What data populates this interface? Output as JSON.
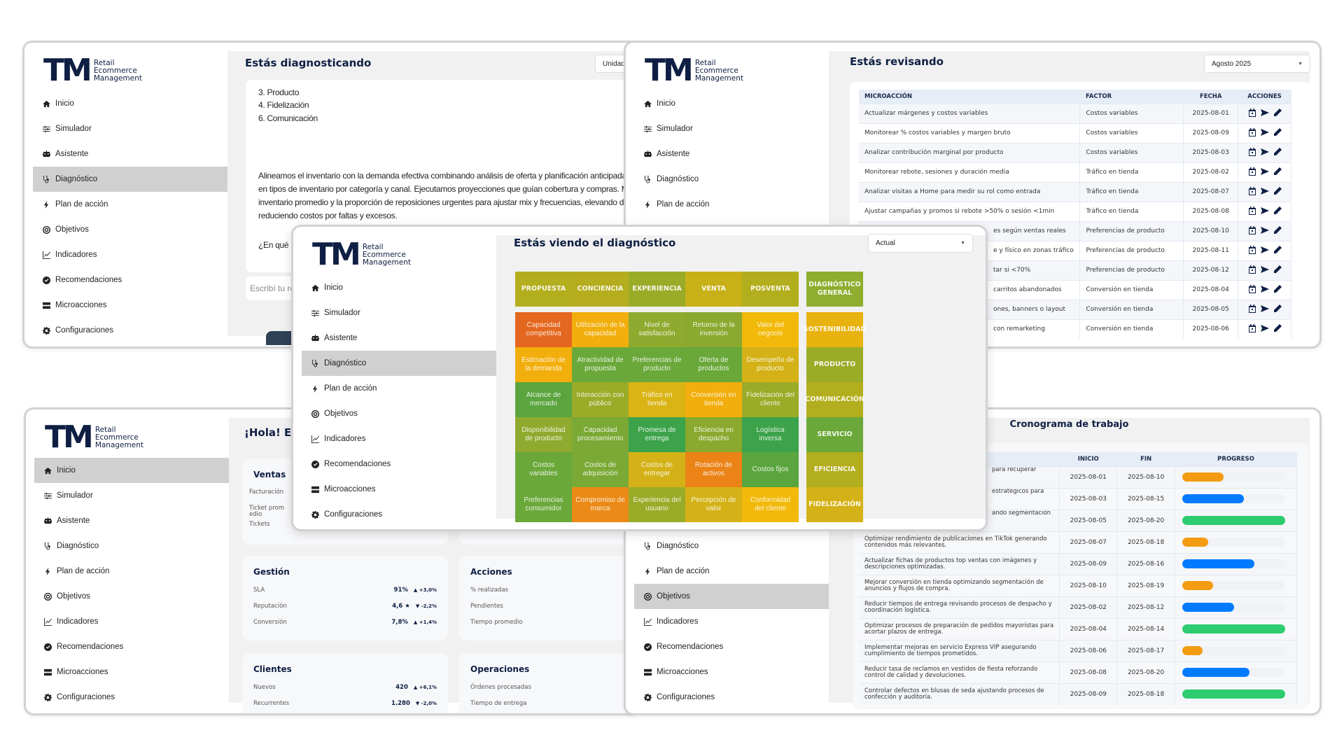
{
  "brand": {
    "letters": "TM",
    "line1": "Retail",
    "line2": "Ecommerce",
    "line3": "Management"
  },
  "sidebar": {
    "items": [
      {
        "label": "Inicio",
        "icon": "home"
      },
      {
        "label": "Simulador",
        "icon": "sliders"
      },
      {
        "label": "Asistente",
        "icon": "robot"
      },
      {
        "label": "Diagnóstico",
        "icon": "stethoscope"
      },
      {
        "label": "Plan de acción",
        "icon": "bolt"
      },
      {
        "label": "Objetivos",
        "icon": "target"
      },
      {
        "label": "Indicadores",
        "icon": "chart"
      },
      {
        "label": "Recomendaciones",
        "icon": "check-circle"
      },
      {
        "label": "Microacciones",
        "icon": "server"
      },
      {
        "label": "Configuraciones",
        "icon": "gear"
      }
    ]
  },
  "diagnosing": {
    "title": "Estás diagnosticando",
    "unit_select": "Unidad",
    "list": [
      "3. Producto",
      "4. Fidelización",
      "6. Comunicación"
    ],
    "paragraph": [
      "Alineamos el inventario con la demanda efectiva combinando análisis de oferta y planificación anticipada",
      "en tipos de inventario por categoría y canal. Ejecutamos proyecciones que guían cobertura y compras. M",
      "inventario promedio y la proporción de reposiciones urgentes para ajustar mix y frecuencias, elevando d",
      "reduciendo costos por faltas y excesos."
    ],
    "question": "¿En qué r",
    "input_placeholder": "Escribí tu re"
  },
  "reviewing": {
    "title": "Estás revisando",
    "period_select": "Agosto 2025",
    "headers": [
      "MICROACCIÓN",
      "FACTOR",
      "FECHA",
      "ACCIONES"
    ],
    "rows": [
      {
        "action": "Actualizar márgenes y costos variables",
        "factor": "Costos variables",
        "date": "2025-08-01"
      },
      {
        "action": "Monitorear % costos variables y margen bruto",
        "factor": "Costos variables",
        "date": "2025-08-09"
      },
      {
        "action": "Analizar contribución marginal por producto",
        "factor": "Costos variables",
        "date": "2025-08-03"
      },
      {
        "action": "Monitorear rebote, sesiones y duración media",
        "factor": "Tráfico en tienda",
        "date": "2025-08-02"
      },
      {
        "action": "Analizar visitas a Home para medir su rol como entrada",
        "factor": "Tráfico en tienda",
        "date": "2025-08-07"
      },
      {
        "action": "Ajustar campañas y promos si rebote >50% o sesión <1min",
        "factor": "Tráfico en tienda",
        "date": "2025-08-08"
      },
      {
        "action": "es según ventas reales",
        "factor": "Preferencias de producto",
        "date": "2025-08-10",
        "partial": true
      },
      {
        "action": "e y físico en zonas tráfico",
        "factor": "Preferencias de producto",
        "date": "2025-08-11",
        "partial": true
      },
      {
        "action": "tar si <70%",
        "factor": "Preferencias de producto",
        "date": "2025-08-12",
        "partial": true
      },
      {
        "action": "carritos abandonados",
        "factor": "Conversión en tienda",
        "date": "2025-08-04",
        "partial": true
      },
      {
        "action": "ones, banners o layout",
        "factor": "Conversión en tienda",
        "date": "2025-08-05",
        "partial": true
      },
      {
        "action": "con remarketing",
        "factor": "Conversión en tienda",
        "date": "2025-08-06",
        "partial": true
      }
    ]
  },
  "home": {
    "title": "¡Hola! Es",
    "cards": [
      {
        "title": "Ventas",
        "rows": [
          {
            "label": "Facturación"
          },
          {
            "label": "Ticket promedio"
          },
          {
            "label": "Tickets"
          }
        ]
      },
      {
        "title": "Gestión",
        "rows": [
          {
            "label": "SLA",
            "value": "91%",
            "trend": "▲ +3,0%"
          },
          {
            "label": "Reputación",
            "value": "4,6 ★",
            "trend": "▼ -2,2%"
          },
          {
            "label": "Conversión",
            "value": "7,8%",
            "trend": "▲ +1,4%"
          }
        ]
      },
      {
        "title": "Clientes",
        "rows": [
          {
            "label": "Nuevos",
            "value": "420",
            "trend": "▲ +6,1%"
          },
          {
            "label": "Recurrentes",
            "value": "1.280",
            "trend": "▼ -2,0%"
          }
        ]
      },
      {
        "title": "",
        "rows": []
      },
      {
        "title": "Acciones",
        "rows": [
          {
            "label": "% realizadas"
          },
          {
            "label": "Pendientes"
          },
          {
            "label": "Tiempo promedio"
          }
        ]
      },
      {
        "title": "Operaciones",
        "rows": [
          {
            "label": "Órdenes procesadas"
          },
          {
            "label": "Tiempo de entrega"
          }
        ]
      }
    ]
  },
  "schedule": {
    "title": "Cronograma de trabajo",
    "headers": [
      "",
      "INICIO",
      "FIN",
      "PROGRESO"
    ],
    "rows": [
      {
        "task": "para recuperar",
        "start": "2025-08-01",
        "end": "2025-08-10",
        "progress": 40,
        "color": "#f39c12",
        "partial": true
      },
      {
        "task": "estratégicos para",
        "start": "2025-08-03",
        "end": "2025-08-15",
        "progress": 60,
        "color": "#007bff",
        "partial": true
      },
      {
        "task": "ando segmentación",
        "start": "2025-08-05",
        "end": "2025-08-20",
        "progress": 100,
        "color": "#2ecc71",
        "partial": true
      },
      {
        "task": "Optimizar rendimiento de publicaciones en TikTok generando contenidos más relevantes.",
        "start": "2025-08-07",
        "end": "2025-08-18",
        "progress": 25,
        "color": "#f39c12"
      },
      {
        "task": "Actualizar fichas de productos top ventas con imágenes y descripciones optimizadas.",
        "start": "2025-08-09",
        "end": "2025-08-16",
        "progress": 70,
        "color": "#007bff"
      },
      {
        "task": "Mejorar conversión en tienda optimizando segmentación de anuncios y flujos de compra.",
        "start": "2025-08-10",
        "end": "2025-08-19",
        "progress": 30,
        "color": "#f39c12"
      },
      {
        "task": "Reducir tiempos de entrega revisando procesos de despacho y coordinación logística.",
        "start": "2025-08-02",
        "end": "2025-08-12",
        "progress": 50,
        "color": "#007bff"
      },
      {
        "task": "Optimizar procesos de preparación de pedidos mayoristas para acortar plazos de entrega.",
        "start": "2025-08-04",
        "end": "2025-08-14",
        "progress": 100,
        "color": "#2ecc71"
      },
      {
        "task": "Implementar mejoras en servicio Express VIP asegurando cumplimiento de tiempos prometidos.",
        "start": "2025-08-06",
        "end": "2025-08-17",
        "progress": 20,
        "color": "#f39c12"
      },
      {
        "task": "Reducir tasa de reclamos en vestidos de fiesta reforzando control de calidad y devoluciones.",
        "start": "2025-08-08",
        "end": "2025-08-20",
        "progress": 65,
        "color": "#007bff"
      },
      {
        "task": "Controlar defectos en blusas de seda ajustando procesos de confección y auditoría.",
        "start": "2025-08-09",
        "end": "2025-08-18",
        "progress": 100,
        "color": "#2ecc71"
      }
    ]
  },
  "diagnosis": {
    "title": "Estás viendo el diagnóstico",
    "version_select": "Actual",
    "columns": [
      {
        "label": "PROPUESTA",
        "color": "#b3ae1d"
      },
      {
        "label": "CONCIENCIA",
        "color": "#b5ad1d"
      },
      {
        "label": "EXPERIENCIA",
        "color": "#9aab28"
      },
      {
        "label": "VENTA",
        "color": "#c7b018"
      },
      {
        "label": "POSVENTA",
        "color": "#b3ae1d"
      }
    ],
    "grid": [
      [
        {
          "label": "Capacidad competitiva",
          "color": "#e4671f"
        },
        {
          "label": "Utilización de la capacidad",
          "color": "#f2ae0c"
        },
        {
          "label": "Nivel de satisfacción",
          "color": "#8faa2e"
        },
        {
          "label": "Retorno de la inversión",
          "color": "#8aa92e"
        },
        {
          "label": "Valor del negocio",
          "color": "#f2b90a"
        }
      ],
      [
        {
          "label": "Estimación de la demanda",
          "color": "#f2ae0c"
        },
        {
          "label": "Atractividad de propuesta",
          "color": "#6aa83a"
        },
        {
          "label": "Preferencias de producto",
          "color": "#6aa83a"
        },
        {
          "label": "Oferta de productos",
          "color": "#6aa83a"
        },
        {
          "label": "Desempeño de producto",
          "color": "#d4b217"
        }
      ],
      [
        {
          "label": "Alcance de mercado",
          "color": "#5ba53e"
        },
        {
          "label": "Interacción con público",
          "color": "#9aab28"
        },
        {
          "label": "Tráfico en tienda",
          "color": "#d9b414"
        },
        {
          "label": "Conversión en tienda",
          "color": "#f2ae0c"
        },
        {
          "label": "Fidelización del cliente",
          "color": "#9aab28"
        }
      ],
      [
        {
          "label": "Disponibilidad de producto",
          "color": "#8faa2e"
        },
        {
          "label": "Capacidad procesamiento",
          "color": "#7aa935"
        },
        {
          "label": "Promesa de entrega",
          "color": "#3ca34a"
        },
        {
          "label": "Eficiencia en despacho",
          "color": "#8aa92e"
        },
        {
          "label": "Logística inversa",
          "color": "#3ca34a"
        }
      ],
      [
        {
          "label": "Costos variables",
          "color": "#6aa83a"
        },
        {
          "label": "Costos de adquisición",
          "color": "#7aa935"
        },
        {
          "label": "Costos de entregar",
          "color": "#d4b217"
        },
        {
          "label": "Rotación de activos",
          "color": "#eb8317"
        },
        {
          "label": "Costos fijos",
          "color": "#5ba53e"
        }
      ],
      [
        {
          "label": "Preferencias consumidor",
          "color": "#6aa83a"
        },
        {
          "label": "Compromiso de marca",
          "color": "#eb8a17"
        },
        {
          "label": "Experiencia del usuario",
          "color": "#9aab28"
        },
        {
          "label": "Percepción de valor",
          "color": "#d4b217"
        },
        {
          "label": "Conformidad del cliente",
          "color": "#f2b90a"
        }
      ]
    ],
    "general": {
      "label": "DIAGNÓSTICO GENERAL",
      "color": "#8fad2e"
    },
    "summary": [
      {
        "label": "SOSTENIBILIDAD",
        "color": "#e8b20f"
      },
      {
        "label": "PRODUCTO",
        "color": "#9aab28"
      },
      {
        "label": "COMUNICACIÓN",
        "color": "#b3ae1d"
      },
      {
        "label": "SERVICIO",
        "color": "#6aa83a"
      },
      {
        "label": "EFICIENCIA",
        "color": "#b3ae1d"
      },
      {
        "label": "FIDELIZACIÓN",
        "color": "#d4b217"
      }
    ]
  }
}
